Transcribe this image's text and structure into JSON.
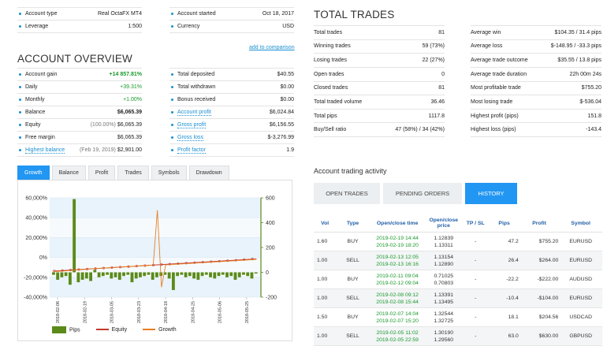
{
  "account_info": {
    "left": [
      {
        "label": "Account type",
        "value": "Real OctaFX MT4"
      },
      {
        "label": "Leverage",
        "value": "1:500"
      }
    ],
    "right": [
      {
        "label": "Account started",
        "value": "Oct 18, 2017"
      },
      {
        "label": "Currency",
        "value": "USD"
      }
    ]
  },
  "add_to_comparison": "add to comparison",
  "overview": {
    "title": "ACCOUNT OVERVIEW",
    "left": [
      {
        "label": "Account gain",
        "value": "+14 857.81%"
      },
      {
        "label": "Daily",
        "value": "+39.31%"
      },
      {
        "label": "Monthly",
        "value": "+1.00%"
      },
      {
        "label": "Balance",
        "value": "$6,065.39"
      },
      {
        "label": "Equity",
        "note": "(100.00%)",
        "value": "$6,065.39"
      },
      {
        "label": "Free margin",
        "value": "$6,065.39"
      },
      {
        "label": "Highest balance",
        "note": "(Feb 19, 2019)",
        "value": "$2,901.00"
      }
    ],
    "right": [
      {
        "label": "Total deposited",
        "value": "$40.55"
      },
      {
        "label": "Total withdrawn",
        "value": "$0.00"
      },
      {
        "label": "Bonus received",
        "value": "$0.00"
      },
      {
        "label": "Account profit",
        "value": "$6,024.84"
      },
      {
        "label": "Gross profit",
        "value": "$6,156.55"
      },
      {
        "label": "Gross loss",
        "value": "$-3,276.99"
      },
      {
        "label": "Profit factor",
        "value": "1.9"
      }
    ]
  },
  "total_trades": {
    "title": "TOTAL TRADES",
    "left": [
      {
        "label": "Total trades",
        "value": "81"
      },
      {
        "label": "Winning trades",
        "value": "59 (73%)"
      },
      {
        "label": "Losing trades",
        "value": "22 (27%)"
      },
      {
        "label": "Open trades",
        "value": "0"
      },
      {
        "label": "Closed trades",
        "value": "81"
      },
      {
        "label": "Total traded volume",
        "value": "36.46"
      },
      {
        "label": "Total pips",
        "value": "1117.8"
      },
      {
        "label": "Buy/Sell ratio",
        "value": "47 (58%) / 34 (42%)"
      }
    ],
    "right": [
      {
        "label": "Average win",
        "value": "$104.35 / 31.4 pips"
      },
      {
        "label": "Average loss",
        "value": "$-148.95 / -33.3 pips"
      },
      {
        "label": "Average trade outcome",
        "value": "$35.55 / 13.8 pips"
      },
      {
        "label": "Average trade duration",
        "value": "22h 00m 24s"
      },
      {
        "label": "Most profitable trade",
        "value": "$755.20"
      },
      {
        "label": "Most losing trade",
        "value": "$-536.04"
      },
      {
        "label": "Highest profit (pips)",
        "value": "151.8"
      },
      {
        "label": "Highest loss (pips)",
        "value": "-143.4"
      }
    ]
  },
  "chart_tabs": [
    "Growth",
    "Balance",
    "Profit",
    "Trades",
    "Symbols",
    "Drawdown"
  ],
  "chart_data": {
    "type": "bar",
    "left_axis_ticks": [
      "60,000%",
      "40,000%",
      "20,000%",
      "0%",
      "-20,000%",
      "-40,000%"
    ],
    "right_axis_ticks": [
      "600",
      "400",
      "200",
      "0",
      "-200"
    ],
    "x_tick_labels": [
      "2018-02-06",
      "2018-02-19",
      "2018-03-05",
      "2018-03-23",
      "2018-04-18",
      "2018-04-25",
      "2018-05-06",
      "2018-05-25"
    ],
    "ylim_left": [
      -40000,
      60000
    ],
    "ylim_right": [
      -200,
      600
    ],
    "series": [
      {
        "name": "Pips",
        "values": [
          -20,
          -60,
          -40,
          -30,
          -100,
          590,
          -80,
          -60,
          -50,
          -70,
          20,
          -40,
          -30,
          -20,
          -50,
          -40,
          -60,
          -30,
          -20,
          -80,
          -50,
          -40,
          -30,
          -20,
          -60,
          -40,
          -30,
          -20,
          -50,
          -143,
          -30,
          -20,
          -40,
          -30,
          -50,
          -60,
          -30,
          -20,
          -40,
          -50,
          -30,
          -20,
          -40,
          -30,
          -60,
          -40,
          -20,
          -30,
          -50,
          -10
        ]
      },
      {
        "name": "Equity",
        "values": [
          10,
          12,
          14,
          16,
          18,
          20,
          22,
          24,
          26,
          28,
          30,
          32,
          34,
          36,
          38,
          40,
          42,
          44,
          46,
          48,
          50,
          52,
          54,
          56,
          58,
          60,
          62,
          64,
          66,
          68,
          70,
          72,
          74,
          76,
          78,
          80,
          82,
          84,
          86,
          88,
          90,
          92,
          94,
          96,
          98,
          100,
          102,
          104,
          106,
          108
        ]
      },
      {
        "name": "Growth",
        "values": [
          5,
          8,
          10,
          12,
          15,
          18,
          20,
          22,
          25,
          28,
          30,
          32,
          34,
          36,
          38,
          40,
          42,
          44,
          46,
          48,
          50,
          52,
          54,
          56,
          58,
          500,
          -120,
          60,
          62,
          64,
          66,
          68,
          70,
          72,
          74,
          76,
          78,
          80,
          82,
          84,
          86,
          88,
          90,
          92,
          94,
          96,
          98,
          100,
          102,
          105
        ]
      }
    ]
  },
  "activity": {
    "title": "Account trading activity",
    "tabs": [
      "OPEN TRADES",
      "PENDING ORDERS",
      "HISTORY"
    ],
    "columns": [
      "Vol",
      "Type",
      "Open/close time",
      "Open/close price",
      "TP / SL",
      "Pips",
      "Profit",
      "Symbol"
    ],
    "rows": [
      {
        "vol": "1.60",
        "type": "BUY",
        "open": "2019-02-19 14:44",
        "close": "2019-02-19 18:20",
        "po": "1.12839",
        "pc": "1.13311",
        "tpsl": "-",
        "pips": "47.2",
        "profit": "$755.20",
        "symbol": "EURUSD"
      },
      {
        "vol": "1.00",
        "type": "SELL",
        "open": "2019-02-13 12:05",
        "close": "2019-02-13 16:16",
        "po": "1.13154",
        "pc": "1.12890",
        "tpsl": "-",
        "pips": "26.4",
        "profit": "$264.00",
        "symbol": "EURUSD"
      },
      {
        "vol": "1.00",
        "type": "BUY",
        "open": "2019-02-11 09:04",
        "close": "2019-02-12 09:04",
        "po": "0.71025",
        "pc": "0.70803",
        "tpsl": "-",
        "pips": "-22.2",
        "profit": "-$222.00",
        "symbol": "AUDUSD"
      },
      {
        "vol": "1.00",
        "type": "SELL",
        "open": "2019-02-08 09:12",
        "close": "2019-02-08 15:44",
        "po": "1.13391",
        "pc": "1.13495",
        "tpsl": "-",
        "pips": "-10.4",
        "profit": "-$104.00",
        "symbol": "EURUSD"
      },
      {
        "vol": "1.50",
        "type": "BUY",
        "open": "2019-02-07 14:04",
        "close": "2019-02-07 15:20",
        "po": "1.32544",
        "pc": "1.32725",
        "tpsl": "-",
        "pips": "18.1",
        "profit": "$204.56",
        "symbol": "USDCAD"
      },
      {
        "vol": "1.00",
        "type": "SELL",
        "open": "2019-02-05 11:02",
        "close": "2019-02-05 22:59",
        "po": "1.30190",
        "pc": "1.29560",
        "tpsl": "-",
        "pips": "63.0",
        "profit": "$630.00",
        "symbol": "GBPUSD"
      }
    ]
  },
  "colors": {
    "accent": "#2196f3",
    "green": "#1a9a2c",
    "red": "#d02020",
    "pips_bar": "#5b8a1a",
    "equity_line": "#c0392b",
    "growth_line": "#e67e22"
  }
}
